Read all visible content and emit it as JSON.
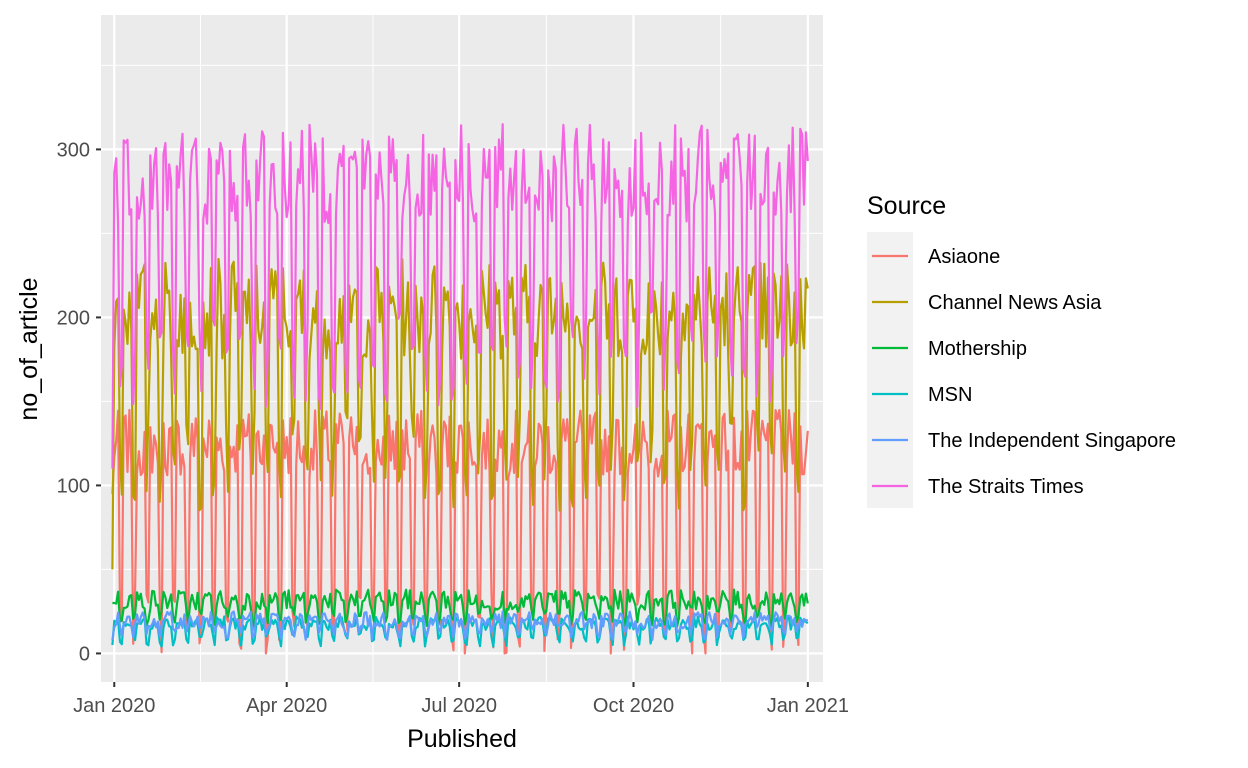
{
  "chart_data": {
    "type": "line",
    "title": "",
    "xlabel": "Published",
    "ylabel": "no_of_article",
    "x_range": [
      "2019-12-31",
      "2021-01-01"
    ],
    "xlim": [
      "2019-12-25",
      "2021-01-09"
    ],
    "ylim": [
      -17,
      380
    ],
    "x_ticks": [
      {
        "date": "2020-01-01",
        "label": "Jan 2020"
      },
      {
        "date": "2020-04-01",
        "label": "Apr 2020"
      },
      {
        "date": "2020-07-01",
        "label": "Jul 2020"
      },
      {
        "date": "2020-10-01",
        "label": "Oct 2020"
      },
      {
        "date": "2021-01-01",
        "label": "Jan 2021"
      }
    ],
    "y_ticks": [
      0,
      100,
      200,
      300
    ],
    "grid": true,
    "legend": {
      "title": "Source",
      "position": "right"
    },
    "series": [
      {
        "name": "Asiaone",
        "color": "#F8766D",
        "weekday": 125,
        "weekend": 18,
        "amp": 20,
        "spike_start": 95
      },
      {
        "name": "Channel News Asia",
        "color": "#B79F00",
        "weekday": 205,
        "weekend": 115,
        "amp": 30,
        "spike_start": 50
      },
      {
        "name": "Mothership",
        "color": "#00BA38",
        "weekday": 32,
        "weekend": 22,
        "amp": 6,
        "spike_start": 30
      },
      {
        "name": "MSN",
        "color": "#00BFC4",
        "weekday": 18,
        "weekend": 8,
        "amp": 4,
        "spike_start": 5
      },
      {
        "name": "The Independent Singapore",
        "color": "#619CFF",
        "weekday": 20,
        "weekend": 13,
        "amp": 5,
        "spike_start": 8
      },
      {
        "name": "The Straits Times",
        "color": "#F564E3",
        "weekday": 285,
        "weekend": 175,
        "amp": 30,
        "spike_start": 110
      }
    ]
  }
}
